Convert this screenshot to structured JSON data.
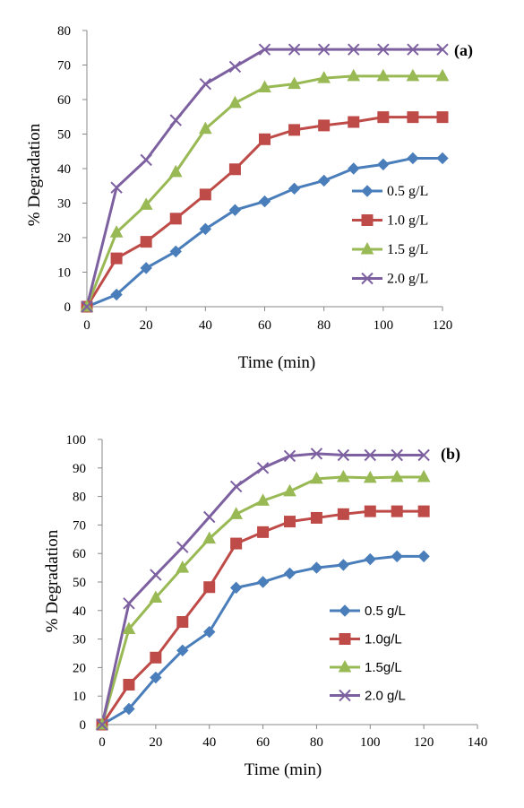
{
  "chart_data": [
    {
      "type": "line",
      "panel_label": "(a)",
      "xlabel": "Time (min)",
      "ylabel": "% Degradation",
      "xlim": [
        0,
        120
      ],
      "ylim": [
        0,
        80
      ],
      "xticks": [
        0,
        20,
        40,
        60,
        80,
        100,
        120
      ],
      "yticks": [
        0,
        10,
        20,
        30,
        40,
        50,
        60,
        70,
        80
      ],
      "legend_position": "right-middle",
      "series": [
        {
          "name": "0.5 g/L",
          "color": "#4A7EBB",
          "marker": "diamond",
          "x": [
            0,
            10,
            20,
            30,
            40,
            50,
            60,
            70,
            80,
            90,
            100,
            110,
            120
          ],
          "y": [
            0,
            3.5,
            11.2,
            16,
            22.5,
            28,
            30.5,
            34.2,
            36.5,
            40,
            41.2,
            43,
            43
          ]
        },
        {
          "name": "1.0 g/L",
          "color": "#BE4B48",
          "marker": "square",
          "x": [
            0,
            10,
            20,
            30,
            40,
            50,
            60,
            70,
            80,
            90,
            100,
            110,
            120
          ],
          "y": [
            0,
            14,
            18.8,
            25.5,
            32.5,
            39.8,
            48.5,
            51.2,
            52.5,
            53.5,
            54.9,
            54.9,
            54.9
          ]
        },
        {
          "name": "1.5 g/L",
          "color": "#98B954",
          "marker": "triangle",
          "x": [
            0,
            10,
            20,
            30,
            40,
            50,
            60,
            70,
            80,
            90,
            100,
            110,
            120
          ],
          "y": [
            0,
            21.5,
            29.5,
            39,
            51.5,
            59,
            63.5,
            64.5,
            66.2,
            66.8,
            66.8,
            66.8,
            66.8
          ]
        },
        {
          "name": "2.0 g/L",
          "color": "#7D60A0",
          "marker": "x",
          "x": [
            0,
            10,
            20,
            30,
            40,
            50,
            60,
            70,
            80,
            90,
            100,
            110,
            120
          ],
          "y": [
            0,
            34.5,
            42.5,
            54,
            64.5,
            69.5,
            74.5,
            74.5,
            74.5,
            74.5,
            74.5,
            74.5,
            74.5
          ]
        }
      ]
    },
    {
      "type": "line",
      "panel_label": "(b)",
      "xlabel": "Time (min)",
      "ylabel": "% Degradation",
      "xlim": [
        0,
        140
      ],
      "ylim": [
        0,
        100
      ],
      "xticks": [
        0,
        20,
        40,
        60,
        80,
        100,
        120,
        140
      ],
      "yticks": [
        0,
        10,
        20,
        30,
        40,
        50,
        60,
        70,
        80,
        90,
        100
      ],
      "legend_position": "right-middle",
      "series": [
        {
          "name": "0.5 g/L",
          "color": "#4A7EBB",
          "marker": "diamond",
          "x": [
            0,
            10,
            20,
            30,
            40,
            50,
            60,
            70,
            80,
            90,
            100,
            110,
            120
          ],
          "y": [
            0,
            5.5,
            16.5,
            26,
            32.5,
            48,
            50,
            53,
            55,
            56,
            58,
            59,
            59
          ]
        },
        {
          "name": "1.0g/L",
          "color": "#BE4B48",
          "marker": "square",
          "x": [
            0,
            10,
            20,
            30,
            40,
            50,
            60,
            70,
            80,
            90,
            100,
            110,
            120
          ],
          "y": [
            0,
            14,
            23.5,
            36,
            48.2,
            63.5,
            67.5,
            71.2,
            72.5,
            73.8,
            74.8,
            74.8,
            74.8
          ]
        },
        {
          "name": "1.5g/L",
          "color": "#98B954",
          "marker": "triangle",
          "x": [
            0,
            10,
            20,
            30,
            40,
            50,
            60,
            70,
            80,
            90,
            100,
            110,
            120
          ],
          "y": [
            0,
            33.5,
            44.5,
            55,
            65.2,
            73.8,
            78.5,
            81.8,
            86.2,
            86.8,
            86.5,
            86.8,
            86.8
          ]
        },
        {
          "name": "2.0 g/L",
          "color": "#7D60A0",
          "marker": "x",
          "x": [
            0,
            10,
            20,
            30,
            40,
            50,
            60,
            70,
            80,
            90,
            100,
            110,
            120
          ],
          "y": [
            0,
            42.5,
            52.5,
            62.2,
            72.8,
            83.5,
            90,
            94.2,
            95,
            94.5,
            94.5,
            94.5,
            94.5
          ]
        }
      ]
    }
  ]
}
